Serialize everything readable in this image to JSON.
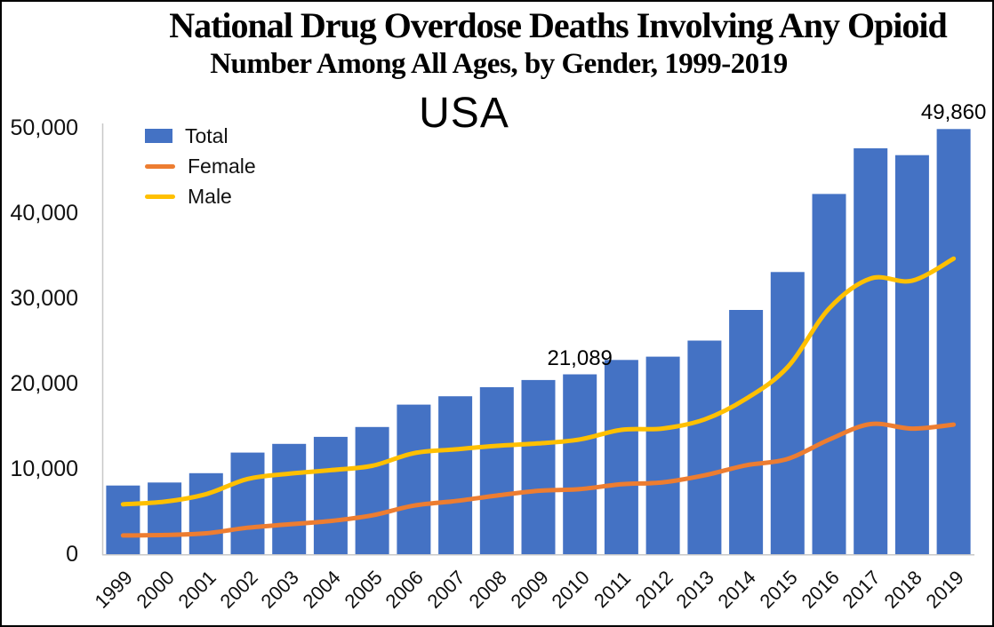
{
  "chart_data": {
    "type": "bar+line",
    "title": "National Drug Overdose Deaths Involving Any Opioid",
    "subtitle": "Number Among All Ages, by Gender, 1999-2019",
    "region_label": "USA",
    "categories": [
      "1999",
      "2000",
      "2001",
      "2002",
      "2003",
      "2004",
      "2005",
      "2006",
      "2007",
      "2008",
      "2009",
      "2010",
      "2011",
      "2012",
      "2013",
      "2014",
      "2015",
      "2016",
      "2017",
      "2018",
      "2019"
    ],
    "series": [
      {
        "name": "Total",
        "type": "bar",
        "color": "#4472C4",
        "values": [
          8048,
          8407,
          9496,
          11920,
          12940,
          13756,
          14918,
          17545,
          18516,
          19582,
          20422,
          21089,
          22784,
          23166,
          25052,
          28647,
          33091,
          42249,
          47600,
          46802,
          49860
        ]
      },
      {
        "name": "Female",
        "type": "line",
        "color": "#ED7D31",
        "values": [
          2196,
          2250,
          2450,
          3100,
          3500,
          3900,
          4550,
          5702,
          6224,
          6874,
          7436,
          7632,
          8200,
          8426,
          9245,
          10422,
          11163,
          13437,
          15263,
          14724,
          15197
        ]
      },
      {
        "name": "Male",
        "type": "line",
        "color": "#FFC000",
        "values": [
          5852,
          6157,
          7046,
          8820,
          9440,
          9856,
          10368,
          11843,
          12292,
          12708,
          12986,
          13457,
          14584,
          14740,
          15807,
          18225,
          21928,
          28812,
          32337,
          32078,
          34663
        ]
      }
    ],
    "xlabel": "",
    "ylabel": "",
    "ylim": [
      0,
      50000
    ],
    "ytick_interval": 10000,
    "ytick_labels": [
      "50,000",
      "40,000",
      "30,000",
      "20,000",
      "10,000",
      "0"
    ],
    "x_label_rotation": -45,
    "grid": false,
    "legend_position": "top-left",
    "annotations": [
      {
        "category": "2010",
        "label": "21,089"
      },
      {
        "category": "2019",
        "label": "49,860"
      }
    ]
  },
  "colors": {
    "bar_blue": "#4472C4",
    "female_orange": "#ED7D31",
    "male_yellow": "#FFC000",
    "axis_gray": "#C8C8C8",
    "frame_black": "#000000"
  }
}
